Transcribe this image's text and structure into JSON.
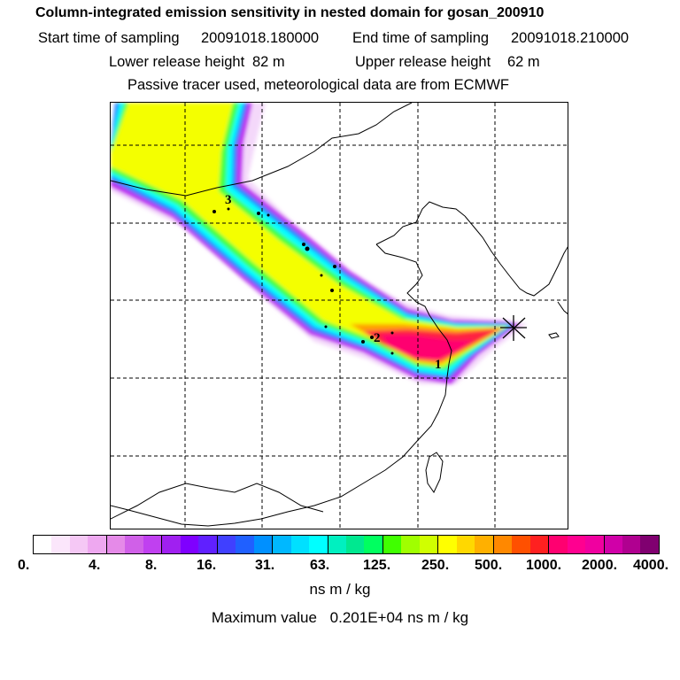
{
  "header": {
    "title": "Column-integrated emission sensitivity in nested domain for gosan_200910",
    "start_label": "Start time of sampling",
    "start_value": "20091018.180000",
    "end_label": "End time of sampling",
    "end_value": "20091018.210000",
    "lower_label": "Lower release height",
    "lower_value": "82 m",
    "upper_label": "Upper release height",
    "upper_value": "62 m",
    "tracer_note": "Passive tracer used, meteorological data are from ECMWF"
  },
  "map": {
    "markers": [
      "1",
      "2",
      "3"
    ],
    "colors": {
      "low": "#ff00ff",
      "mid": "#00ffff",
      "high": "#ffff00",
      "max": "#ff0066"
    }
  },
  "colorbar": {
    "colors": [
      "#ffffff",
      "#fbe6fb",
      "#f5c8f5",
      "#eea8f0",
      "#e58ae8",
      "#d060e8",
      "#c040f0",
      "#a020f0",
      "#7f00ff",
      "#6020ff",
      "#4040ff",
      "#2060ff",
      "#0090ff",
      "#00b8ff",
      "#00e0ff",
      "#00ffff",
      "#00f0c0",
      "#00e890",
      "#00ff60",
      "#40ff00",
      "#a0ff00",
      "#d0ff00",
      "#ffff00",
      "#ffd800",
      "#ffb000",
      "#ff8800",
      "#ff5000",
      "#ff2020",
      "#ff0070",
      "#ff0090",
      "#f000a0",
      "#d000a8",
      "#b00090",
      "#800070"
    ],
    "tick_labels": [
      "0.",
      "4.",
      "8.",
      "16.",
      "31.",
      "63.",
      "125.",
      "250.",
      "500.",
      "1000.",
      "2000.",
      "4000."
    ],
    "unit": "ns m / kg"
  },
  "footer": {
    "max_label": "Maximum value",
    "max_value": "0.201E+04",
    "max_unit": "ns m / kg"
  }
}
